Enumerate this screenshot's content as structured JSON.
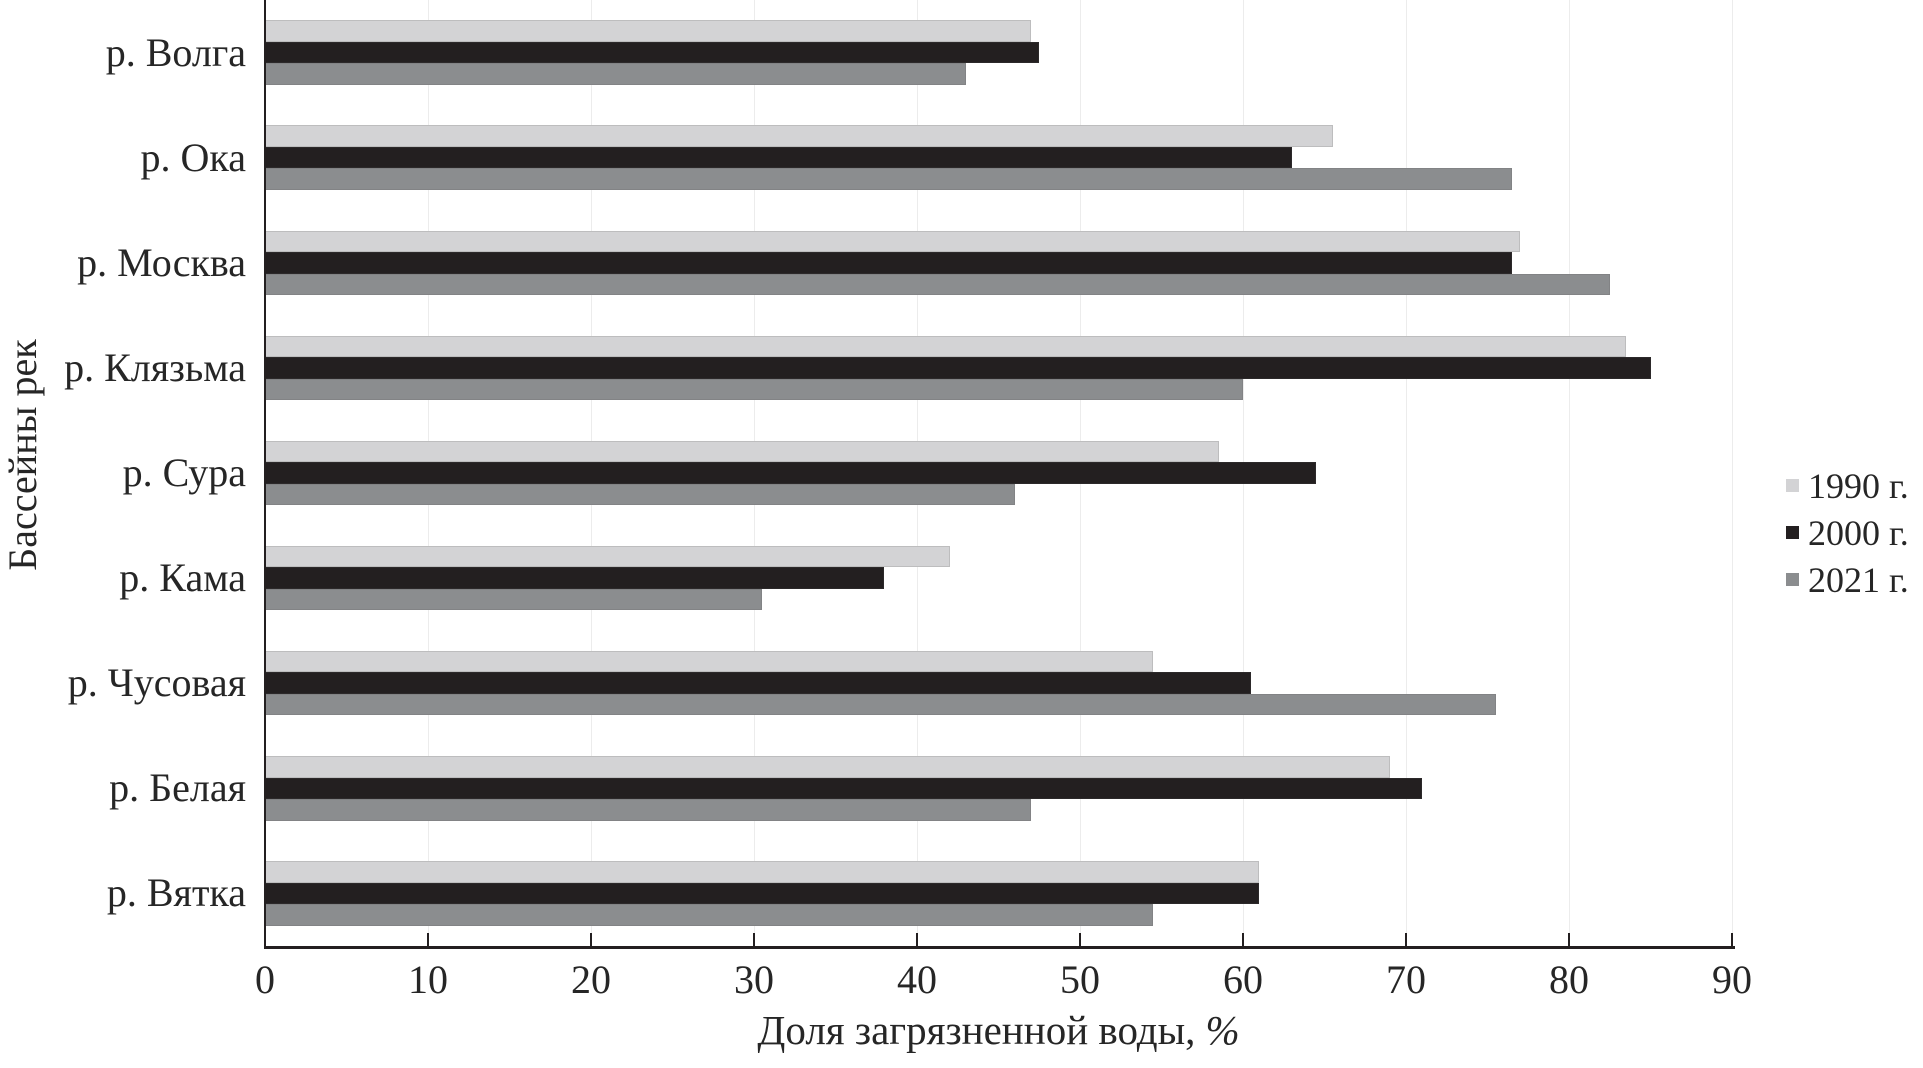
{
  "chart_data": {
    "type": "bar",
    "orientation": "horizontal",
    "xlabel": "Доля загрязненной воды, %",
    "xlabel_main": "Доля загрязненной воды,",
    "xlabel_symbol": "%",
    "ylabel": "Бассейны рек",
    "categories": [
      "р. Волга",
      "р. Ока",
      "р. Москва",
      "р. Клязьма",
      "р. Сура",
      "р. Кама",
      "р. Чусовая",
      "р. Белая",
      "р. Вятка"
    ],
    "series": [
      {
        "name": "1990 г.",
        "color": "#d3d3d5",
        "values": [
          47,
          65.5,
          77,
          83.5,
          58.5,
          42,
          54.5,
          69,
          61
        ]
      },
      {
        "name": "2000 г.",
        "color": "#231f20",
        "values": [
          47.5,
          63,
          76.5,
          85,
          64.5,
          38,
          60.5,
          71,
          61
        ]
      },
      {
        "name": "2021 г.",
        "color": "#8b8d8f",
        "values": [
          43,
          76.5,
          82.5,
          60,
          46,
          30.5,
          75.5,
          47,
          54.5
        ]
      }
    ],
    "x_ticks": [
      0,
      10,
      20,
      30,
      40,
      50,
      60,
      70,
      80,
      90
    ],
    "xlim": [
      0,
      90
    ],
    "grid": "faint-vertical-gridlines",
    "legend_position": "right-middle",
    "colors": {
      "axis": "#231f20",
      "text": "#262626",
      "gridline": "#ececec",
      "background": "#ffffff"
    }
  }
}
